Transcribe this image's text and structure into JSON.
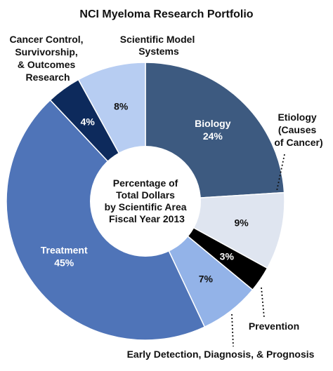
{
  "chart_data": {
    "type": "pie",
    "style": "donut",
    "title": "NCI Myeloma Research Portfolio",
    "center_label": [
      "Percentage of",
      "Total Dollars",
      "by Scientific Area",
      "Fiscal Year 2013"
    ],
    "slices": [
      {
        "label": "Biology",
        "value": 24,
        "value_label": "24%",
        "color": "#3d5a80",
        "text_color": "#ffffff"
      },
      {
        "label": "Etiology (Causes of Cancer)",
        "value": 9,
        "value_label": "9%",
        "color": "#dfe5f0",
        "text_color": "#111111"
      },
      {
        "label": "Prevention",
        "value": 3,
        "value_label": "3%",
        "color": "#000000",
        "text_color": "#ffffff"
      },
      {
        "label": "Early Detection, Diagnosis, & Prognosis",
        "value": 7,
        "value_label": "7%",
        "color": "#93b3e8",
        "text_color": "#111111"
      },
      {
        "label": "Treatment",
        "value": 45,
        "value_label": "45%",
        "color": "#4f74b8",
        "text_color": "#ffffff"
      },
      {
        "label": "Cancer Control, Survivorship, & Outcomes Research",
        "value": 4,
        "value_label": "4%",
        "color": "#0d2a5c",
        "text_color": "#ffffff"
      },
      {
        "label": "Scientific Model Systems",
        "value": 8,
        "value_label": "8%",
        "color": "#b7cdf2",
        "text_color": "#111111"
      }
    ],
    "external_labels": {
      "etiology": [
        "Etiology",
        "(Causes",
        "of Cancer)"
      ],
      "prevention": [
        "Prevention"
      ],
      "early_detection": [
        "Early Detection, Diagnosis, & Prognosis"
      ],
      "cancer_control": [
        "Cancer Control,",
        "Survivorship,",
        "& Outcomes",
        "Research"
      ],
      "model_systems": [
        "Scientific Model",
        "Systems"
      ]
    }
  }
}
